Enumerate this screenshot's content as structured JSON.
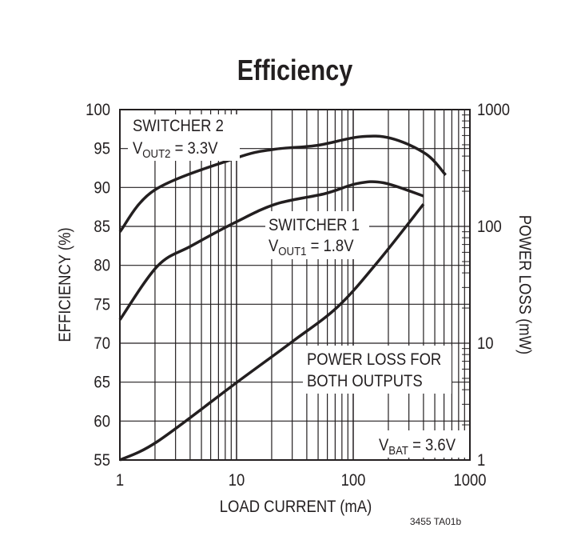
{
  "chart_data": {
    "type": "line",
    "title": "Efficiency",
    "xlabel": "LOAD CURRENT (mA)",
    "ylabel": "EFFICIENCY (%)",
    "y2label": "POWER LOSS (mW)",
    "xscale": "log",
    "xlim": [
      1,
      1000
    ],
    "ylim": [
      55,
      100
    ],
    "y2scale": "log",
    "y2lim": [
      1,
      1000
    ],
    "xticks": [
      "1",
      "10",
      "100",
      "1000"
    ],
    "yticks": [
      "55",
      "60",
      "65",
      "70",
      "75",
      "80",
      "85",
      "90",
      "95",
      "100"
    ],
    "y2ticks": [
      "1",
      "10",
      "100",
      "1000"
    ],
    "grid": true,
    "series": [
      {
        "name": "SWITCHER 2",
        "axis": "left",
        "x": [
          1,
          2,
          10,
          21,
          49,
          113,
          213,
          420,
          620
        ],
        "y": [
          84.3,
          89.7,
          93.8,
          94.9,
          95.4,
          96.5,
          96.3,
          94.3,
          91.6
        ]
      },
      {
        "name": "SWITCHER 1",
        "axis": "left",
        "x": [
          1,
          2.1,
          4.1,
          10,
          22,
          57,
          108,
          182,
          400
        ],
        "y": [
          73.0,
          79.9,
          82.5,
          85.6,
          87.9,
          89.2,
          90.5,
          90.6,
          88.9
        ]
      },
      {
        "name": "POWER LOSS FOR BOTH OUTPUTS",
        "axis": "right",
        "x": [
          1,
          2.1,
          10,
          30,
          74,
          163,
          400
        ],
        "y": [
          1,
          1.44,
          4.6,
          10.3,
          20.6,
          50,
          155
        ]
      }
    ],
    "annotations": [
      {
        "line1": "SWITCHER 2",
        "line2_main": "V",
        "line2_sub": "OUT2",
        "line2_rest": " = 3.3V"
      },
      {
        "line1": "SWITCHER 1",
        "line2_main": "V",
        "line2_sub": "OUT1",
        "line2_rest": " = 1.8V"
      },
      {
        "line1": "POWER LOSS FOR",
        "line2": "BOTH OUTPUTS"
      },
      {
        "main": "V",
        "sub": "BAT",
        "rest": " = 3.6V"
      }
    ],
    "footnote": "3455 TA01b"
  }
}
